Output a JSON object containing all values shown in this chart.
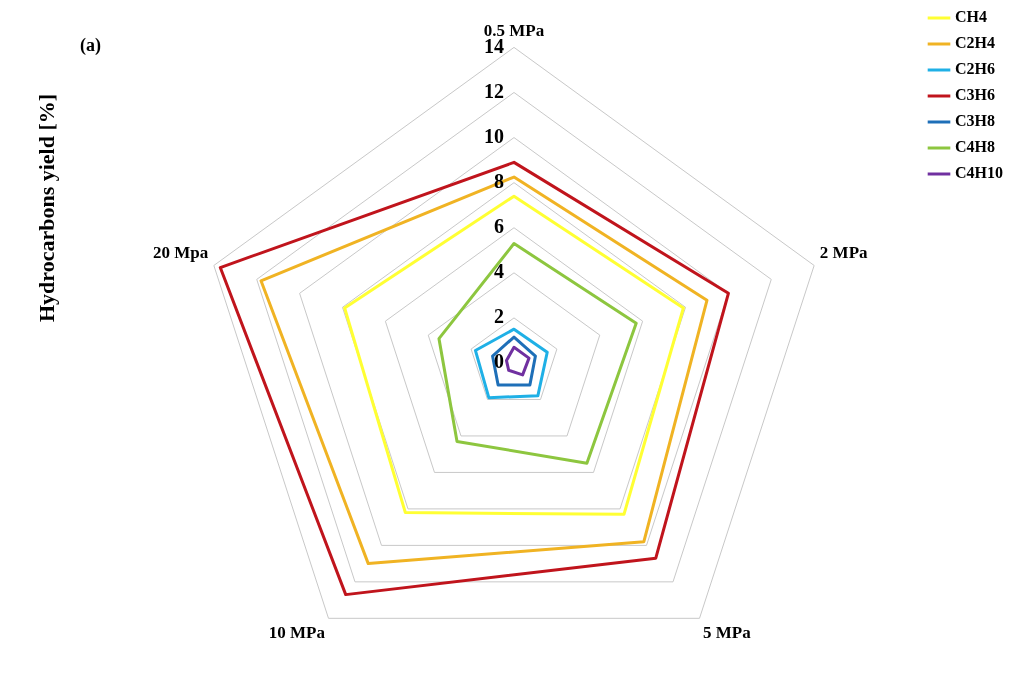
{
  "chart_data": {
    "type": "radar",
    "ylabel": "Hydrocarbons yield [%]",
    "annotations": [
      "(a)"
    ],
    "categories": [
      "0.5 MPa",
      "2 MPa",
      "5 MPa",
      "10 MPa",
      "20 Mpa"
    ],
    "ylim": [
      0,
      14
    ],
    "yticks": [
      0,
      2,
      4,
      6,
      8,
      10,
      12,
      14
    ],
    "grid": true,
    "legend": "top right",
    "marker": "none",
    "series": [
      {
        "name": "CH4",
        "color": "#ffff33",
        "values": [
          7.4,
          7.9,
          8.3,
          8.2,
          7.9
        ]
      },
      {
        "name": "C2H4",
        "color": "#f0b323",
        "values": [
          8.25,
          9.0,
          9.8,
          11.0,
          11.8
        ]
      },
      {
        "name": "C2H6",
        "color": "#1fb0e6",
        "values": [
          1.5,
          1.55,
          1.8,
          1.9,
          1.8
        ]
      },
      {
        "name": "C3H6",
        "color": "#c0141c",
        "values": [
          8.9,
          10.0,
          10.7,
          12.7,
          13.7
        ]
      },
      {
        "name": "C3H8",
        "color": "#1e6fb8",
        "values": [
          1.15,
          1.0,
          1.2,
          1.2,
          1.0
        ]
      },
      {
        "name": "C4H8",
        "color": "#8dc63f",
        "values": [
          5.3,
          5.7,
          5.5,
          4.3,
          3.5
        ]
      },
      {
        "name": "C4H10",
        "color": "#7030a0",
        "values": [
          0.7,
          0.7,
          0.65,
          0.4,
          0.35
        ]
      }
    ]
  }
}
